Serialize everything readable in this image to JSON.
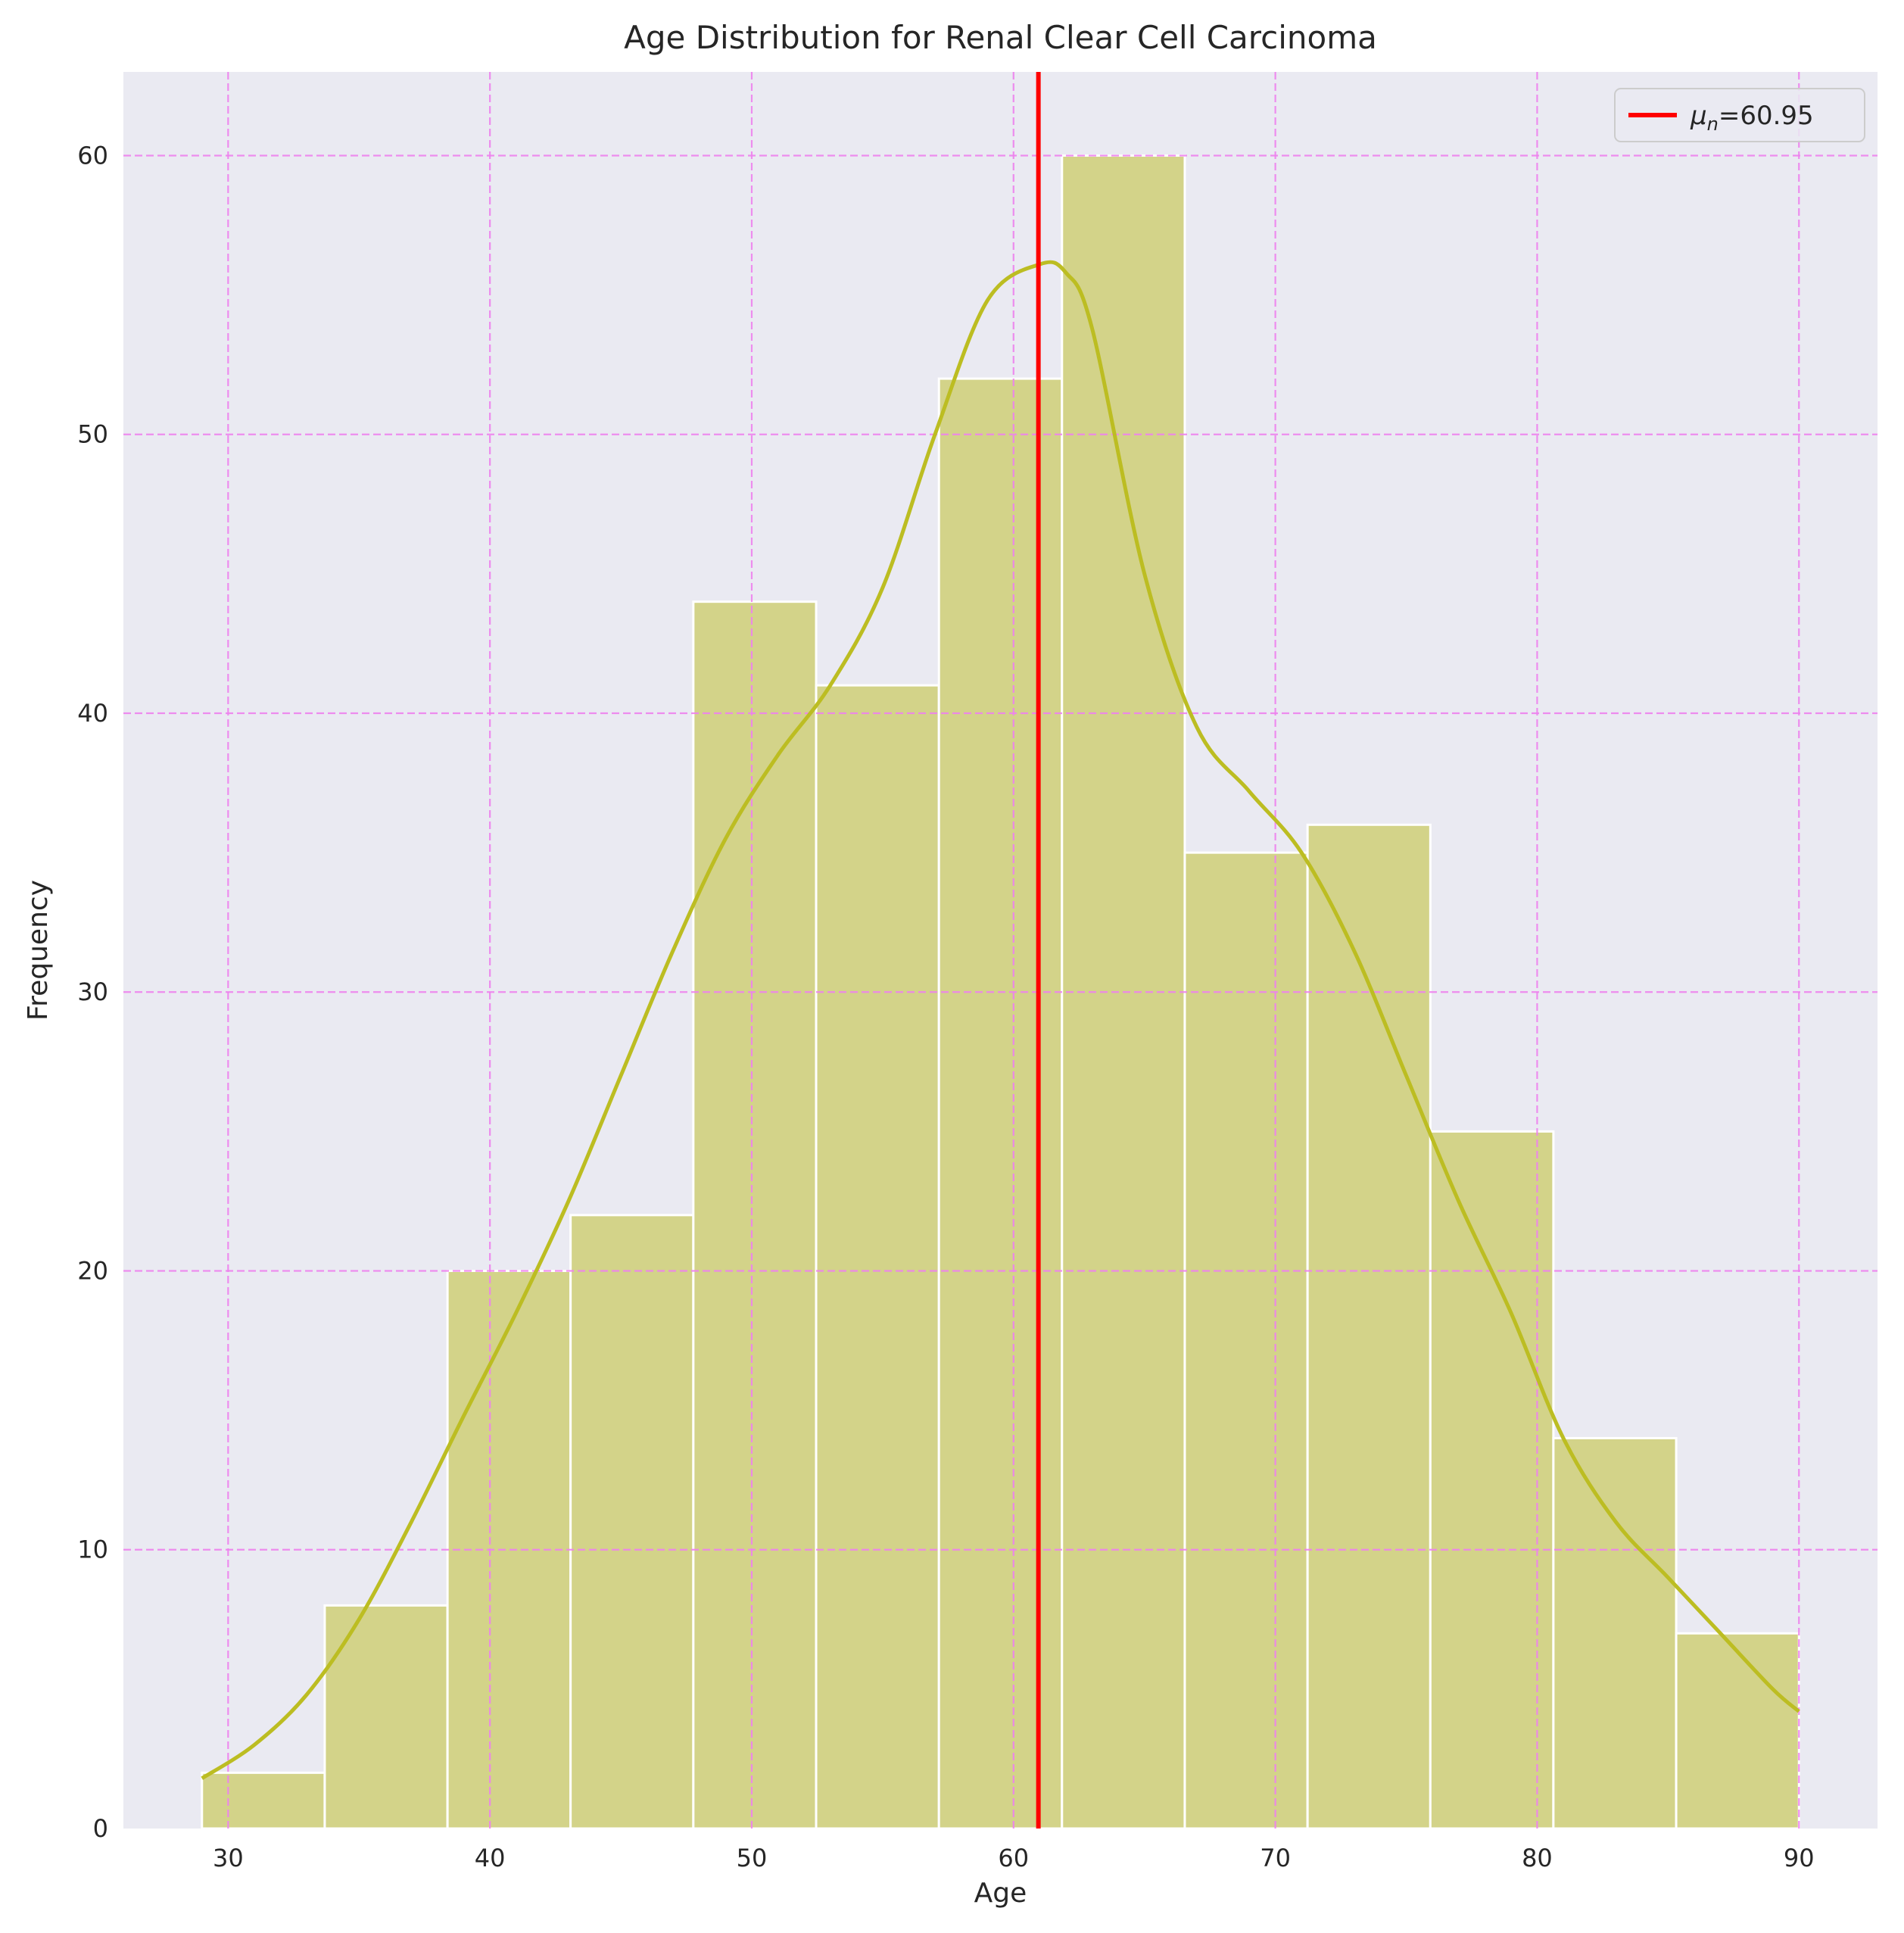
{
  "chart_data": {
    "type": "histogram",
    "title": "Age Distribution for Renal Clear Cell Carcinoma",
    "xlabel": "Age",
    "ylabel": "Frequency",
    "xlim": [
      26,
      93
    ],
    "ylim": [
      0,
      63
    ],
    "xticks": [
      30,
      40,
      50,
      60,
      70,
      80,
      90
    ],
    "yticks": [
      0,
      10,
      20,
      30,
      40,
      50,
      60
    ],
    "bins": [
      {
        "x0": 29.0,
        "x1": 33.69,
        "count": 2
      },
      {
        "x0": 33.69,
        "x1": 38.38,
        "count": 8
      },
      {
        "x0": 38.38,
        "x1": 43.08,
        "count": 20
      },
      {
        "x0": 43.08,
        "x1": 47.77,
        "count": 22
      },
      {
        "x0": 47.77,
        "x1": 52.46,
        "count": 44
      },
      {
        "x0": 52.46,
        "x1": 57.15,
        "count": 41
      },
      {
        "x0": 57.15,
        "x1": 61.85,
        "count": 52
      },
      {
        "x0": 61.85,
        "x1": 66.54,
        "count": 60
      },
      {
        "x0": 66.54,
        "x1": 71.23,
        "count": 35
      },
      {
        "x0": 71.23,
        "x1": 75.92,
        "count": 36
      },
      {
        "x0": 75.92,
        "x1": 80.62,
        "count": 25
      },
      {
        "x0": 80.62,
        "x1": 85.31,
        "count": 14
      },
      {
        "x0": 85.31,
        "x1": 90.0,
        "count": 7
      }
    ],
    "kde": {
      "x": [
        29,
        31,
        33,
        35,
        37,
        39,
        41,
        43,
        45,
        47,
        49,
        51,
        53,
        55,
        57,
        59,
        61,
        62,
        63,
        65,
        67,
        69,
        71,
        73,
        75,
        77,
        79,
        81,
        83,
        85,
        87,
        89,
        90
      ],
      "y": [
        1.8,
        3.0,
        4.8,
        7.5,
        11.0,
        14.8,
        18.5,
        22.5,
        27.0,
        31.5,
        35.5,
        38.5,
        41.0,
        44.5,
        50.0,
        54.8,
        56.1,
        55.8,
        53.8,
        45.0,
        39.5,
        37.2,
        35.0,
        31.5,
        27.0,
        22.5,
        18.5,
        14.0,
        11.0,
        9.0,
        7.0,
        5.0,
        4.2
      ]
    },
    "mean_line": {
      "x": 60.95,
      "label_prefix": "μ",
      "label_subscript": "n",
      "label_suffix": "=60.95"
    },
    "colors": {
      "background": "#eaeaf2",
      "bar_fill": "#d3d389",
      "bar_edge": "#ffffff",
      "kde": "#bcbd22",
      "mean": "#ff0000",
      "grid": "#ee82ee"
    },
    "grid": true,
    "legend_position": "top-right"
  }
}
